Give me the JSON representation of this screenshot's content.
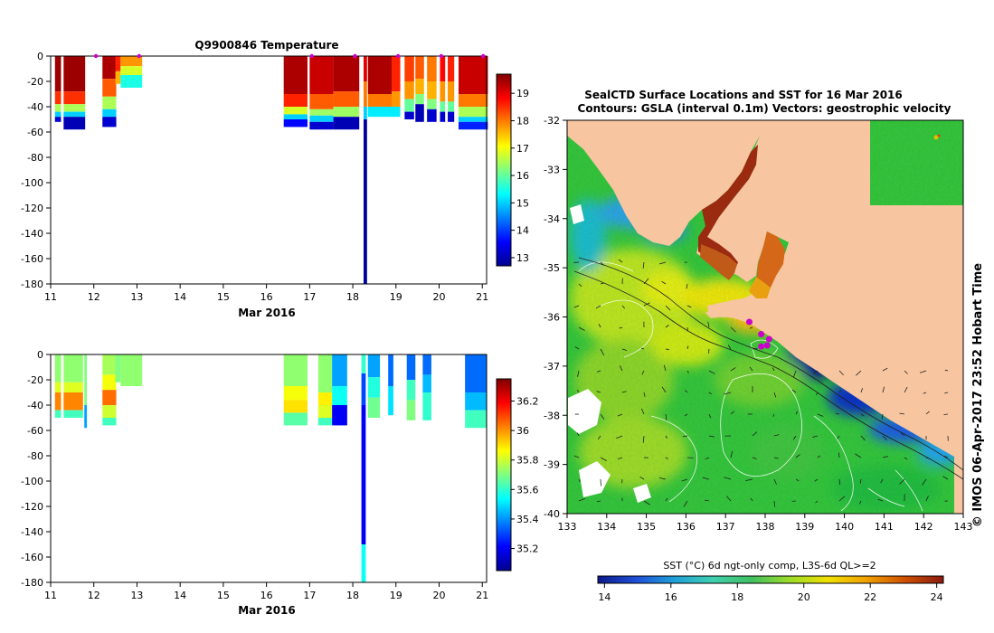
{
  "colors": {
    "land": "#f7c59f",
    "jet": [
      "#00008f",
      "#0000ff",
      "#0080ff",
      "#00ffff",
      "#80ff80",
      "#ffff00",
      "#ff8000",
      "#ff0000",
      "#800000"
    ],
    "cmap": [
      "#0a1a8c",
      "#1f4fd8",
      "#1fa0d8",
      "#3fd0b0",
      "#40c060",
      "#9cdc28",
      "#f0e000",
      "#f0a000",
      "#d05000",
      "#8a1a10"
    ],
    "marker": "#cc00cc"
  },
  "chart_data": [
    {
      "id": "temperature",
      "type": "heatmap",
      "title": "Q9900846  Temperature",
      "xlabel": "Mar 2016",
      "xticks": [
        "11",
        "12",
        "13",
        "14",
        "15",
        "16",
        "17",
        "18",
        "19",
        "20",
        "21"
      ],
      "xlim": [
        11,
        21.1
      ],
      "ylim": [
        -180,
        0
      ],
      "yticks": [
        "0",
        "-20",
        "-40",
        "-60",
        "-80",
        "-100",
        "-120",
        "-140",
        "-160",
        "-180"
      ],
      "colorbar": {
        "ticks": [
          "13",
          "14",
          "15",
          "16",
          "17",
          "18",
          "19"
        ],
        "range": [
          12.7,
          19.7
        ]
      },
      "markers": [
        12.05,
        13.05,
        17.05,
        18.05,
        19.05,
        20.05,
        21.02
      ],
      "profiles": [
        {
          "t": 11.1,
          "w": 0.14,
          "depth": 52,
          "zones": [
            [
              0,
              28,
              19.5
            ],
            [
              28,
              38,
              18.5
            ],
            [
              38,
              44,
              16.5
            ],
            [
              44,
              48,
              15
            ],
            [
              48,
              52,
              13.2
            ]
          ]
        },
        {
          "t": 11.3,
          "w": 0.5,
          "depth": 58,
          "zones": [
            [
              0,
              28,
              19.5
            ],
            [
              28,
              38,
              18.5
            ],
            [
              38,
              44,
              16.5
            ],
            [
              44,
              48,
              15
            ],
            [
              48,
              58,
              13
            ]
          ]
        },
        {
          "t": 12.2,
          "w": 0.32,
          "depth": 56,
          "zones": [
            [
              0,
              18,
              19.4
            ],
            [
              18,
              32,
              18.2
            ],
            [
              32,
              42,
              16.5
            ],
            [
              42,
              48,
              15
            ],
            [
              48,
              56,
              13.2
            ]
          ]
        },
        {
          "t": 12.5,
          "w": 0.12,
          "depth": 22,
          "zones": [
            [
              0,
              12,
              18.6
            ],
            [
              12,
              22,
              17.6
            ]
          ]
        },
        {
          "t": 12.62,
          "w": 0.5,
          "depth": 25,
          "zones": [
            [
              0,
              8,
              17.8
            ],
            [
              8,
              15,
              16.8
            ],
            [
              15,
              25,
              15.5
            ]
          ]
        },
        {
          "t": 16.4,
          "w": 0.55,
          "depth": 56,
          "zones": [
            [
              0,
              30,
              19.4
            ],
            [
              30,
              40,
              18.6
            ],
            [
              40,
              46,
              16.8
            ],
            [
              46,
              50,
              15
            ],
            [
              50,
              56,
              13.6
            ]
          ]
        },
        {
          "t": 17.0,
          "w": 0.55,
          "depth": 58,
          "zones": [
            [
              0,
              30,
              19.2
            ],
            [
              30,
              42,
              18.2
            ],
            [
              42,
              47,
              16.4
            ],
            [
              47,
              52,
              15
            ],
            [
              52,
              58,
              13.2
            ]
          ]
        },
        {
          "t": 17.55,
          "w": 0.6,
          "depth": 58,
          "zones": [
            [
              0,
              28,
              19.4
            ],
            [
              28,
              40,
              18.2
            ],
            [
              40,
              48,
              16.4
            ],
            [
              48,
              58,
              13
            ]
          ]
        },
        {
          "t": 18.25,
          "w": 0.08,
          "depth": 180,
          "zones": [
            [
              0,
              20,
              19
            ],
            [
              20,
              40,
              18
            ],
            [
              40,
              50,
              15
            ],
            [
              50,
              180,
              12.8
            ]
          ]
        },
        {
          "t": 18.35,
          "w": 0.55,
          "depth": 48,
          "zones": [
            [
              0,
              30,
              19.4
            ],
            [
              30,
              40,
              18
            ],
            [
              40,
              48,
              15.2
            ]
          ]
        },
        {
          "t": 18.9,
          "w": 0.2,
          "depth": 48,
          "zones": [
            [
              0,
              28,
              18.6
            ],
            [
              28,
              40,
              17.8
            ],
            [
              40,
              48,
              15.2
            ]
          ]
        },
        {
          "t": 19.2,
          "w": 0.22,
          "depth": 50,
          "zones": [
            [
              0,
              20,
              18.4
            ],
            [
              20,
              34,
              17.8
            ],
            [
              34,
              44,
              16
            ],
            [
              44,
              50,
              13.2
            ]
          ]
        },
        {
          "t": 19.45,
          "w": 0.2,
          "depth": 52,
          "zones": [
            [
              0,
              18,
              18.2
            ],
            [
              18,
              30,
              17.6
            ],
            [
              30,
              38,
              16.2
            ],
            [
              38,
              52,
              13
            ]
          ]
        },
        {
          "t": 19.72,
          "w": 0.22,
          "depth": 52,
          "zones": [
            [
              0,
              20,
              18
            ],
            [
              20,
              34,
              17.6
            ],
            [
              34,
              42,
              16.2
            ],
            [
              42,
              52,
              13.2
            ]
          ]
        },
        {
          "t": 20.02,
          "w": 0.12,
          "depth": 52,
          "zones": [
            [
              0,
              20,
              18.8
            ],
            [
              20,
              36,
              17.8
            ],
            [
              36,
              44,
              16
            ],
            [
              44,
              52,
              13.2
            ]
          ]
        },
        {
          "t": 20.2,
          "w": 0.15,
          "depth": 52,
          "zones": [
            [
              0,
              20,
              18.6
            ],
            [
              20,
              36,
              17.8
            ],
            [
              36,
              44,
              16
            ],
            [
              44,
              52,
              13.2
            ]
          ]
        },
        {
          "t": 20.45,
          "w": 0.68,
          "depth": 58,
          "zones": [
            [
              0,
              30,
              19.2
            ],
            [
              30,
              40,
              18
            ],
            [
              40,
              48,
              16.5
            ],
            [
              48,
              52,
              15
            ],
            [
              52,
              58,
              13.8
            ]
          ]
        }
      ]
    },
    {
      "id": "salinity",
      "type": "heatmap",
      "title": "",
      "xlabel": "Mar 2016",
      "xticks": [
        "11",
        "12",
        "13",
        "14",
        "15",
        "16",
        "17",
        "18",
        "19",
        "20",
        "21"
      ],
      "xlim": [
        11,
        21.1
      ],
      "ylim": [
        -180,
        0
      ],
      "yticks": [
        "0",
        "-20",
        "-40",
        "-60",
        "-80",
        "-100",
        "-120",
        "-140",
        "-160",
        "-180"
      ],
      "colorbar": {
        "ticks": [
          "35.2",
          "35.4",
          "35.6",
          "35.8",
          "36",
          "36.2"
        ],
        "range": [
          35.05,
          36.35
        ]
      },
      "profiles": [
        {
          "t": 11.1,
          "w": 0.14,
          "depth": 50,
          "zones": [
            [
              0,
              22,
              35.72
            ],
            [
              22,
              30,
              35.82
            ],
            [
              30,
              44,
              36.02
            ],
            [
              44,
              50,
              35.62
            ]
          ]
        },
        {
          "t": 11.3,
          "w": 0.45,
          "depth": 50,
          "zones": [
            [
              0,
              22,
              35.72
            ],
            [
              22,
              30,
              35.82
            ],
            [
              30,
              44,
              36.02
            ],
            [
              44,
              50,
              35.62
            ]
          ]
        },
        {
          "t": 11.78,
          "w": 0.06,
          "depth": 58,
          "zones": [
            [
              0,
              40,
              35.7
            ],
            [
              40,
              58,
              35.42
            ]
          ]
        },
        {
          "t": 12.2,
          "w": 0.32,
          "depth": 56,
          "zones": [
            [
              0,
              16,
              35.75
            ],
            [
              16,
              28,
              35.85
            ],
            [
              28,
              40,
              36.05
            ],
            [
              40,
              50,
              35.8
            ],
            [
              50,
              56,
              35.62
            ]
          ]
        },
        {
          "t": 12.5,
          "w": 0.12,
          "depth": 22,
          "zones": [
            [
              0,
              22,
              35.7
            ]
          ]
        },
        {
          "t": 12.62,
          "w": 0.5,
          "depth": 25,
          "zones": [
            [
              0,
              25,
              35.72
            ]
          ]
        },
        {
          "t": 16.4,
          "w": 0.55,
          "depth": 56,
          "zones": [
            [
              0,
              25,
              35.72
            ],
            [
              25,
              36,
              35.85
            ],
            [
              36,
              46,
              35.9
            ],
            [
              46,
              56,
              35.65
            ]
          ]
        },
        {
          "t": 17.2,
          "w": 0.32,
          "depth": 56,
          "zones": [
            [
              0,
              30,
              35.72
            ],
            [
              30,
              40,
              35.88
            ],
            [
              40,
              50,
              35.82
            ],
            [
              50,
              56,
              35.62
            ]
          ]
        },
        {
          "t": 17.52,
          "w": 0.35,
          "depth": 56,
          "zones": [
            [
              0,
              25,
              35.42
            ],
            [
              25,
              40,
              35.55
            ],
            [
              40,
              56,
              35.2
            ]
          ]
        },
        {
          "t": 18.2,
          "w": 0.1,
          "depth": 180,
          "zones": [
            [
              0,
              15,
              35.6
            ],
            [
              15,
              40,
              35.3
            ],
            [
              40,
              150,
              35.2
            ],
            [
              150,
              180,
              35.55
            ]
          ]
        },
        {
          "t": 18.35,
          "w": 0.28,
          "depth": 50,
          "zones": [
            [
              0,
              18,
              35.42
            ],
            [
              18,
              34,
              35.58
            ],
            [
              34,
              50,
              35.68
            ]
          ]
        },
        {
          "t": 18.82,
          "w": 0.12,
          "depth": 48,
          "zones": [
            [
              0,
              25,
              35.35
            ],
            [
              25,
              48,
              35.5
            ]
          ]
        },
        {
          "t": 19.25,
          "w": 0.2,
          "depth": 52,
          "zones": [
            [
              0,
              20,
              35.35
            ],
            [
              20,
              36,
              35.62
            ],
            [
              36,
              52,
              35.7
            ]
          ]
        },
        {
          "t": 19.62,
          "w": 0.2,
          "depth": 52,
          "zones": [
            [
              0,
              16,
              35.35
            ],
            [
              16,
              30,
              35.45
            ],
            [
              30,
              52,
              35.6
            ]
          ]
        },
        {
          "t": 20.6,
          "w": 0.5,
          "depth": 58,
          "zones": [
            [
              0,
              30,
              35.35
            ],
            [
              30,
              44,
              35.45
            ],
            [
              44,
              58,
              35.62
            ]
          ]
        }
      ]
    },
    {
      "id": "sst_map",
      "type": "heatmap",
      "title": "SealCTD Surface Locations and SST for 16 Mar 2016",
      "subtitle": "Contours: GSLA (interval 0.1m) Vectors: geostrophic velocity",
      "xticks": [
        "133",
        "134",
        "135",
        "136",
        "137",
        "138",
        "139",
        "140",
        "141",
        "142",
        "143"
      ],
      "xlim": [
        133,
        143
      ],
      "yticks": [
        "-32",
        "-33",
        "-34",
        "-35",
        "-36",
        "-37",
        "-38",
        "-39",
        "-40"
      ],
      "ylim": [
        -40,
        -32
      ],
      "colorbar": {
        "label": "SST (°C) 6d ngt-only comp, L3S-6d QL>=2",
        "ticks": [
          "14",
          "16",
          "18",
          "20",
          "22",
          "24"
        ],
        "range": [
          13.8,
          24.2
        ]
      },
      "side_label": "© IMOS 06-Apr-2017 23:52 Hobart Time",
      "markers": [
        [
          137.6,
          -36.1
        ],
        [
          137.9,
          -36.35
        ],
        [
          138.1,
          -36.45
        ],
        [
          137.9,
          -36.6
        ],
        [
          138.05,
          -36.58
        ]
      ]
    }
  ]
}
